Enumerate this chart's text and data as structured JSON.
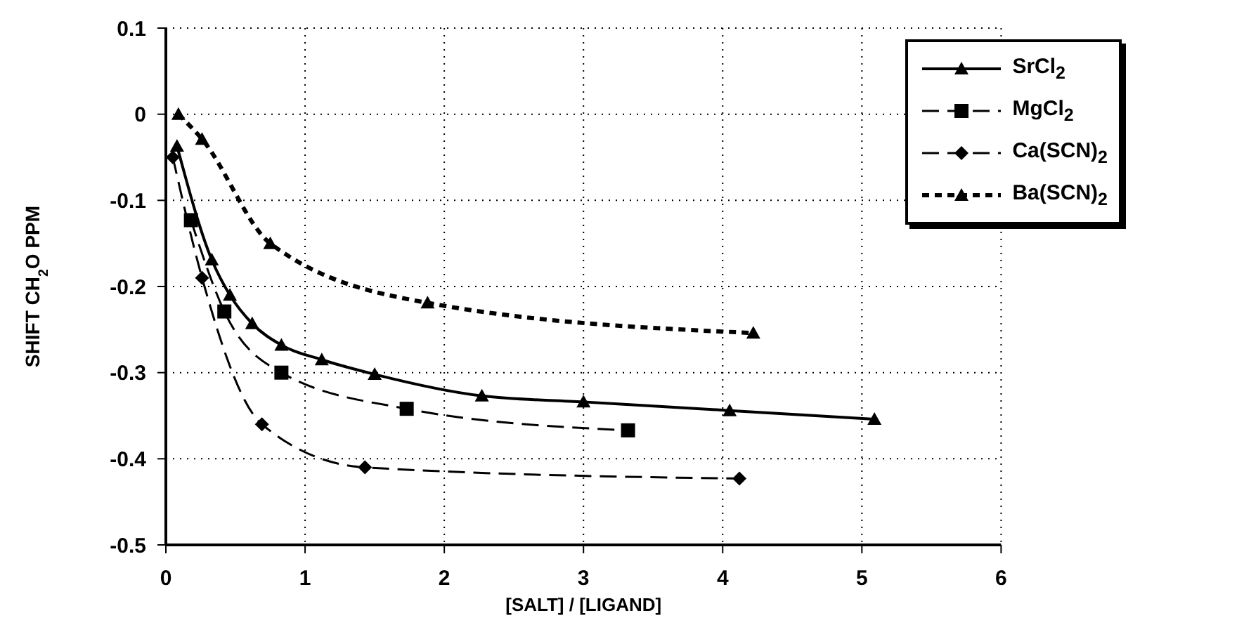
{
  "chart_data": {
    "type": "line",
    "xlabel": "[SALT] / [LIGAND]",
    "ylabel": "SHIFT CH$_{2}$O PPM",
    "xlim": [
      0,
      6
    ],
    "xticks": [
      0,
      1,
      2,
      3,
      4,
      5,
      6
    ],
    "ylim": [
      -0.5,
      0.1
    ],
    "yticks": [
      -0.5,
      -0.4,
      -0.3,
      -0.2,
      -0.1,
      0,
      0.1
    ],
    "grid": true,
    "legend": "top right",
    "series": [
      {
        "name": "SrCl$_{2}$",
        "color": "#000000",
        "marker": "triangle",
        "line_style": "solid",
        "x": [
          0.08,
          0.33,
          0.46,
          0.62,
          0.83,
          1.12,
          1.5,
          2.27,
          3.0,
          4.05,
          5.09
        ],
        "values": [
          -0.037,
          -0.169,
          -0.21,
          -0.243,
          -0.268,
          -0.285,
          -0.302,
          -0.327,
          -0.334,
          -0.344,
          -0.354
        ]
      },
      {
        "name": "MgCl$_{2}$",
        "color": "#000000",
        "marker": "square",
        "line_style": "dashed",
        "x": [
          0.18,
          0.42,
          0.83,
          1.73,
          3.32
        ],
        "values": [
          -0.123,
          -0.229,
          -0.3,
          -0.342,
          -0.367
        ]
      },
      {
        "name": "Ca(SCN)$_{2}$",
        "color": "#000000",
        "marker": "diamond",
        "line_style": "dashed",
        "x": [
          0.05,
          0.26,
          0.69,
          1.43,
          4.12
        ],
        "values": [
          -0.05,
          -0.19,
          -0.36,
          -0.41,
          -0.423
        ]
      },
      {
        "name": "Ba(SCN)$_{2}$",
        "color": "#000000",
        "marker": "triangle",
        "line_style": "dotted",
        "x": [
          0.09,
          0.26,
          0.75,
          1.88,
          4.22
        ],
        "values": [
          0.0,
          -0.029,
          -0.15,
          -0.219,
          -0.254
        ]
      }
    ]
  }
}
